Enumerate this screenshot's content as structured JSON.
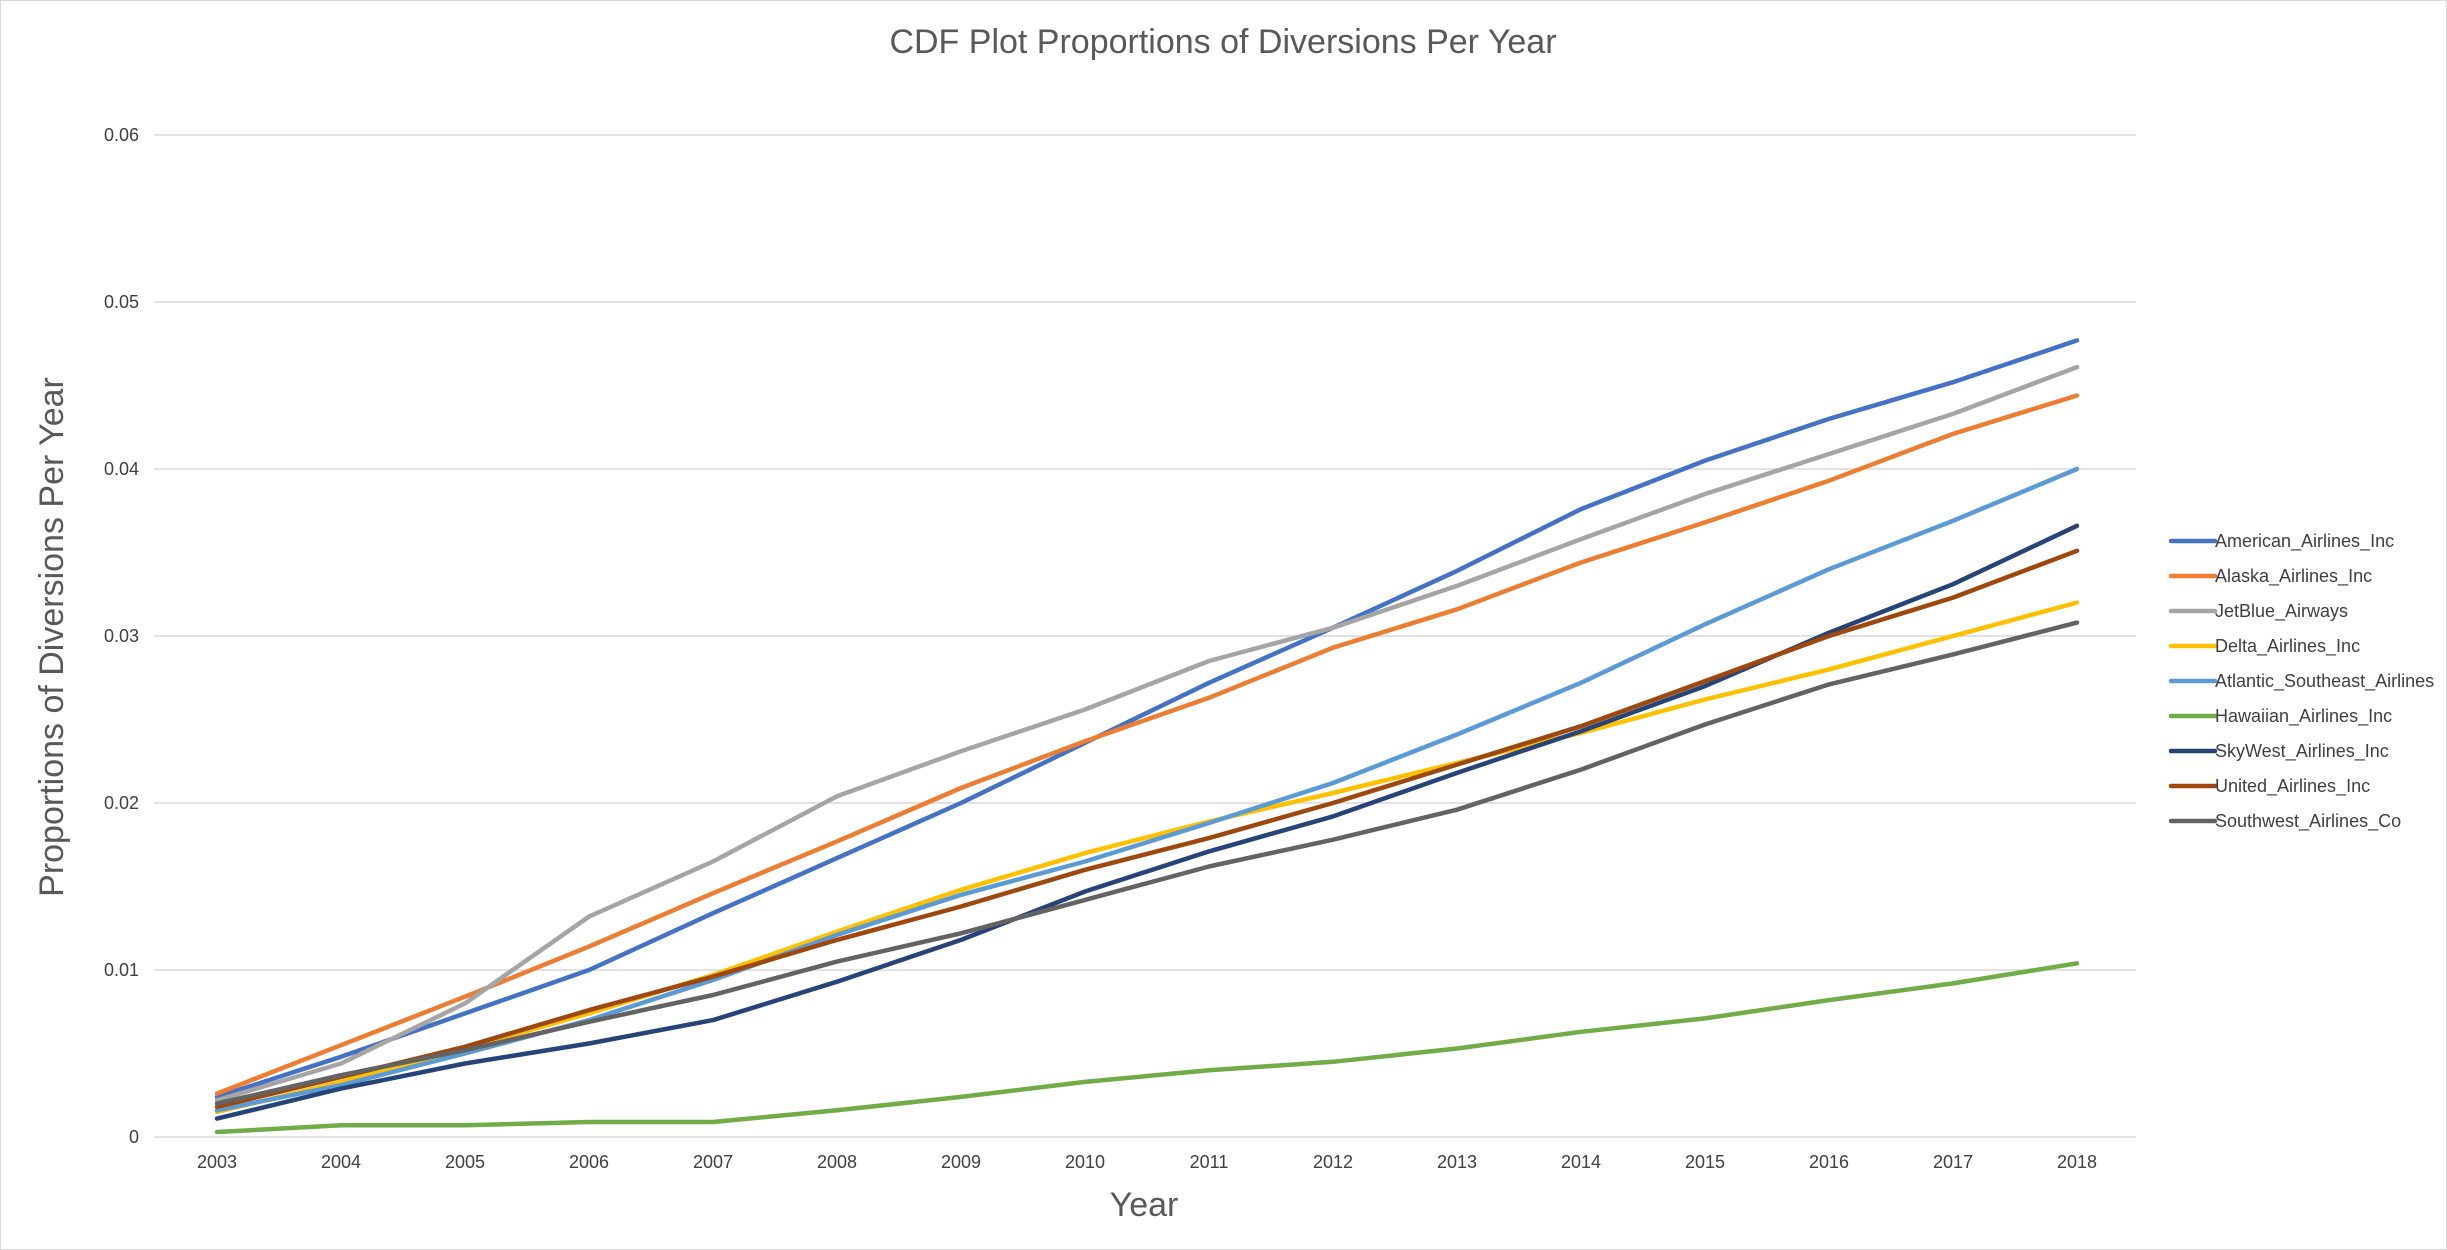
{
  "chart_data": {
    "type": "line",
    "title": "CDF Plot Proportions of Diversions Per Year",
    "xlabel": "Year",
    "ylabel": "Proportions of Diversions Per Year",
    "categories": [
      "2003",
      "2004",
      "2005",
      "2006",
      "2007",
      "2008",
      "2009",
      "2010",
      "2011",
      "2012",
      "2013",
      "2014",
      "2015",
      "2016",
      "2017",
      "2018"
    ],
    "ylim": [
      0,
      0.06
    ],
    "yticks": [
      0,
      0.01,
      0.02,
      0.03,
      0.04,
      0.05,
      0.06
    ],
    "ytick_labels": [
      "0",
      "0.01",
      "0.02",
      "0.03",
      "0.04",
      "0.05",
      "0.06"
    ],
    "grid": true,
    "legend_position": "right",
    "series": [
      {
        "name": "American_Airlines_Inc",
        "color": "#4472C4",
        "values": [
          0.0024,
          0.0048,
          0.0074,
          0.01,
          0.0134,
          0.0167,
          0.02,
          0.0236,
          0.0272,
          0.0305,
          0.0339,
          0.0376,
          0.0405,
          0.043,
          0.0452,
          0.0477
        ]
      },
      {
        "name": "Alaska_Airlines_Inc",
        "color": "#ED7D31",
        "values": [
          0.0026,
          0.0055,
          0.0084,
          0.0114,
          0.0146,
          0.0177,
          0.0209,
          0.0237,
          0.0263,
          0.0293,
          0.0316,
          0.0344,
          0.0368,
          0.0393,
          0.0421,
          0.0444
        ]
      },
      {
        "name": "JetBlue_Airways",
        "color": "#A5A5A5",
        "values": [
          0.0022,
          0.0044,
          0.008,
          0.0132,
          0.0165,
          0.0204,
          0.0231,
          0.0256,
          0.0285,
          0.0305,
          0.033,
          0.0358,
          0.0385,
          0.0409,
          0.0433,
          0.0461
        ]
      },
      {
        "name": "Delta_Airlines_Inc",
        "color": "#FFC000",
        "values": [
          0.0015,
          0.0033,
          0.0053,
          0.0074,
          0.0097,
          0.0123,
          0.0148,
          0.017,
          0.0189,
          0.0206,
          0.0224,
          0.0242,
          0.0262,
          0.028,
          0.03,
          0.032
        ]
      },
      {
        "name": "Atlantic_Southeast_Airlines",
        "color": "#5B9BD5",
        "values": [
          0.0016,
          0.0031,
          0.005,
          0.007,
          0.0094,
          0.0121,
          0.0145,
          0.0165,
          0.0188,
          0.0212,
          0.0241,
          0.0272,
          0.0307,
          0.034,
          0.0369,
          0.04
        ]
      },
      {
        "name": "Hawaiian_Airlines_Inc",
        "color": "#70AD47",
        "values": [
          0.0003,
          0.0007,
          0.0007,
          0.0009,
          0.0009,
          0.0016,
          0.0024,
          0.0033,
          0.004,
          0.0045,
          0.0053,
          0.0063,
          0.0071,
          0.0082,
          0.0092,
          0.0104
        ]
      },
      {
        "name": "SkyWest_Airlines_Inc",
        "color": "#264478",
        "values": [
          0.0011,
          0.0029,
          0.0044,
          0.0056,
          0.007,
          0.0093,
          0.0118,
          0.0147,
          0.0171,
          0.0192,
          0.0218,
          0.0243,
          0.027,
          0.0302,
          0.0331,
          0.0366
        ]
      },
      {
        "name": "United_Airlines_Inc",
        "color": "#9E480E",
        "values": [
          0.0018,
          0.0036,
          0.0054,
          0.0076,
          0.0096,
          0.0118,
          0.0138,
          0.016,
          0.0179,
          0.02,
          0.0223,
          0.0246,
          0.0273,
          0.03,
          0.0323,
          0.0351
        ]
      },
      {
        "name": "Southwest_Airlines_Co",
        "color": "#636363",
        "values": [
          0.002,
          0.0037,
          0.0052,
          0.0069,
          0.0085,
          0.0105,
          0.0122,
          0.0142,
          0.0162,
          0.0178,
          0.0196,
          0.022,
          0.0247,
          0.0271,
          0.0289,
          0.0308
        ]
      }
    ]
  }
}
